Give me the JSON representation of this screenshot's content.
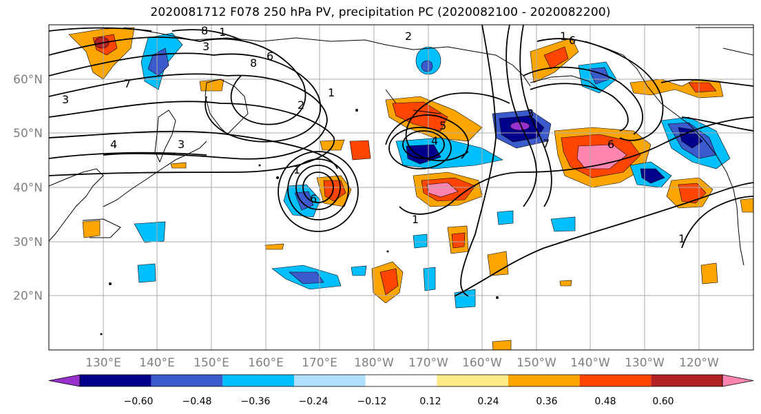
{
  "title": "2020081712 F078 250 hPa PV, precipitation PC (2020082100 - 2020082200)",
  "map": {
    "lat_labels": [
      "60°N",
      "50°N",
      "40°N",
      "30°N",
      "20°N"
    ],
    "lon_labels": [
      "130°E",
      "140°E",
      "150°E",
      "160°E",
      "170°E",
      "180°W",
      "170°W",
      "160°W",
      "150°W",
      "140°W",
      "130°W",
      "120°W"
    ],
    "pv_contour_labels": [
      "8",
      "1",
      "2",
      "3",
      "6",
      "8",
      "7",
      "1",
      "2",
      "3",
      "4",
      "1",
      "6",
      "3",
      "1",
      "5",
      "4",
      "3",
      "6",
      "7",
      "1",
      "6",
      "1"
    ]
  },
  "colorbar": {
    "ticks": [
      "−0.60",
      "−0.48",
      "−0.36",
      "−0.24",
      "−0.12",
      "0.12",
      "0.24",
      "0.36",
      "0.48",
      "0.60"
    ],
    "colors": [
      "#9932cc",
      "#00008b",
      "#3b5bcd",
      "#00bfff",
      "#b0e0ff",
      "#ffffff",
      "#ffeb88",
      "#ffa500",
      "#ff4500",
      "#b22222",
      "#ff85b0"
    ]
  }
}
